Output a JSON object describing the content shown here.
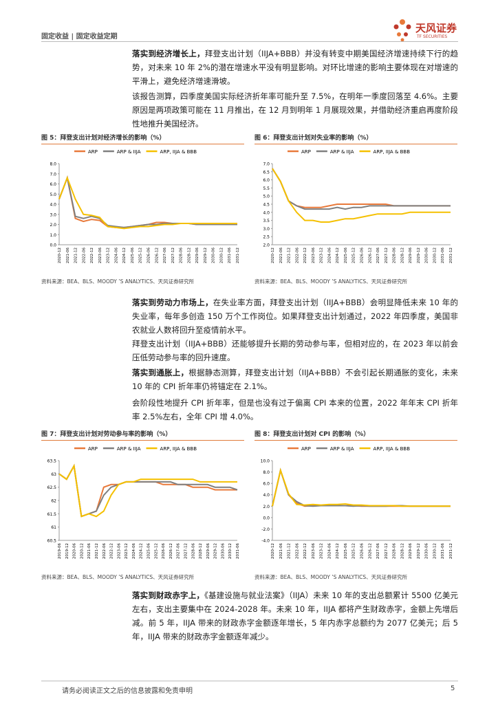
{
  "header": {
    "section": "固定收益 | 固定收益定期",
    "brand": "天风证券",
    "brand_en": "TF SECURITIES"
  },
  "paragraphs": [
    {
      "lead": "落实到经济增长上，",
      "text": "拜登支出计划（IIJA+BBB）并没有转变中期美国经济增速持续下行的趋势，对未来 10 年 2%的潜在增速水平没有明显影响。对环比增速的影响主要体现在对增速的平滑上，避免经济增速滑坡。"
    },
    {
      "text": "该报告测算，四季度美国实际经济折年率可能升至 7.5%，在明年一季度回落至 4.6%。主要原因是两项政策可能在 11 月推出，在 12 月到明年 1 月展现效果，并借助经济重启再度阶段性地推升美国经济。"
    },
    {
      "lead": "落实到劳动力市场上，",
      "text": "在失业率方面，拜登支出计划（IIJA+BBB）会明显降低未来 10 年的失业率，每年多创造 150 万个工作岗位。如果拜登支出计划通过，2022 年四季度，美国非农就业人数将回升至疫情前水平。"
    },
    {
      "text": "拜登支出计划（IIJA+BBB）还能够提升长期的劳动参与率，但相对应的，在 2023 年以前会压低劳动参与率的回升速度。"
    },
    {
      "lead": "落实到通胀上，",
      "text": "根据静态测算，拜登支出计划（IIJA+BBB）不会引起长期通胀的变化，未来 10 年的 CPI 折年率仍将锚定在 2.1%。"
    },
    {
      "text": "会阶段性地提升 CPI 折年率，但是也没有过于偏离 CPI 本来的位置，2022 年年末 CPI 折年率 2.5%左右，全年 CPI 增 4.0%。"
    },
    {
      "lead": "落实到财政赤字上，",
      "text": "《基建设施与就业法案》（IIJA）未来 10 年的支出总额累计 5500 亿美元左右，支出主要集中在 2024-2028 年。未来 10 年，IIJA 都将产生财政赤字，金额上先增后减。前 5 年，IIJA 带来的财政赤字金额逐年增长，5 年内赤字总额约为 2077 亿美元；后 5 年，IIJA 带来的财政赤字金额逐年减少。"
    }
  ],
  "footer": {
    "disclaimer": "请务必阅读正文之后的信息披露和免责申明",
    "page": "5"
  },
  "chart_data": [
    {
      "type": "line",
      "title": "图 5：拜登支出计划对经济增长的影响（%）",
      "source": "资料来源：BEA、BLS、MOODY ’S ANALYTICS、天风证券研究所",
      "categories": [
        "2020-12",
        "2021-06",
        "2021-12",
        "2022-06",
        "2022-12",
        "2023-06",
        "2023-12",
        "2024-06",
        "2024-12",
        "2025-06",
        "2025-12",
        "2026-06",
        "2026-12",
        "2027-06",
        "2027-12",
        "2028-06",
        "2028-12",
        "2029-06",
        "2029-12",
        "2030-06",
        "2030-12",
        "2031-06",
        "2031-12"
      ],
      "series": [
        {
          "name": "ARP",
          "color": "#e8793a",
          "values": [
            4.5,
            6.6,
            2.6,
            2.3,
            2.5,
            2.4,
            1.8,
            1.7,
            1.7,
            1.8,
            1.9,
            2.0,
            2.2,
            2.2,
            2.1,
            2.1,
            2.1,
            2.0,
            2.0,
            2.0,
            2.0,
            2.0,
            2.0
          ]
        },
        {
          "name": "ARP & IIJA",
          "color": "#7f7f7f",
          "values": [
            4.5,
            6.6,
            2.8,
            2.6,
            2.8,
            2.6,
            1.9,
            1.8,
            1.7,
            1.8,
            1.9,
            2.0,
            2.0,
            2.1,
            2.1,
            2.1,
            2.1,
            2.0,
            2.0,
            2.0,
            2.0,
            2.0,
            2.0
          ]
        },
        {
          "name": "ARP, IIJA & BBB",
          "color": "#f5c000",
          "values": [
            4.5,
            6.6,
            4.5,
            3.0,
            2.9,
            2.7,
            1.8,
            1.7,
            1.6,
            1.7,
            1.8,
            1.8,
            1.9,
            2.0,
            2.0,
            2.1,
            2.1,
            2.1,
            2.1,
            2.1,
            2.1,
            2.1,
            2.1
          ]
        }
      ],
      "ylim": [
        0,
        8
      ],
      "yticks": [
        {
          "value": 0,
          "label": "0.0"
        },
        {
          "value": 1,
          "label": "1.0"
        },
        {
          "value": 2,
          "label": "2.0"
        },
        {
          "value": 3,
          "label": "3.0"
        },
        {
          "value": 4,
          "label": "4.0"
        },
        {
          "value": 5,
          "label": "5.0"
        },
        {
          "value": 6,
          "label": "6.0"
        },
        {
          "value": 7,
          "label": "7.0"
        },
        {
          "value": 8,
          "label": "8.0"
        }
      ]
    },
    {
      "type": "line",
      "title": "图 6：拜登支出计划对失业率的影响（%）",
      "source": "资料来源：BEA、BLS、MOODY ’S ANALYTICS、天风证券研究所",
      "categories": [
        "2020-12",
        "2021-06",
        "2021-12",
        "2022-06",
        "2022-12",
        "2023-06",
        "2023-12",
        "2024-06",
        "2024-12",
        "2025-06",
        "2025-12",
        "2026-06",
        "2026-12",
        "2027-06",
        "2027-12",
        "2028-06",
        "2028-12",
        "2029-06",
        "2029-12",
        "2030-06",
        "2030-12",
        "2031-06",
        "2031-12"
      ],
      "series": [
        {
          "name": "ARP",
          "color": "#e8793a",
          "values": [
            6.7,
            5.9,
            4.7,
            4.4,
            4.3,
            4.3,
            4.3,
            4.4,
            4.5,
            4.5,
            4.5,
            4.5,
            4.5,
            4.5,
            4.5,
            4.4,
            4.4,
            4.4,
            4.4,
            4.4,
            4.4,
            4.4,
            4.4
          ]
        },
        {
          "name": "ARP & IIJA",
          "color": "#7f7f7f",
          "values": [
            6.7,
            5.9,
            4.7,
            4.4,
            4.2,
            4.2,
            4.2,
            4.2,
            4.3,
            4.2,
            4.3,
            4.3,
            4.4,
            4.4,
            4.4,
            4.4,
            4.4,
            4.4,
            4.4,
            4.4,
            4.4,
            4.4,
            4.4
          ]
        },
        {
          "name": "ARP, IIJA & BBB",
          "color": "#f5c000",
          "values": [
            6.7,
            5.9,
            4.7,
            4.0,
            3.5,
            3.5,
            3.4,
            3.4,
            3.5,
            3.6,
            3.6,
            3.7,
            3.8,
            3.9,
            3.9,
            3.9,
            3.9,
            4.0,
            4.0,
            4.0,
            4.0,
            4.0,
            4.0
          ]
        }
      ],
      "ylim": [
        2,
        7
      ],
      "yticks": [
        {
          "value": 2,
          "label": "2.0"
        },
        {
          "value": 2.5,
          "label": "2.5"
        },
        {
          "value": 3,
          "label": "3.0"
        },
        {
          "value": 3.5,
          "label": "3.5"
        },
        {
          "value": 4,
          "label": "4.0"
        },
        {
          "value": 4.5,
          "label": "4.5"
        },
        {
          "value": 5,
          "label": "5.0"
        },
        {
          "value": 5.5,
          "label": "5.5"
        },
        {
          "value": 6,
          "label": "6.0"
        },
        {
          "value": 6.5,
          "label": "6.5"
        },
        {
          "value": 7,
          "label": "7.0"
        }
      ]
    },
    {
      "type": "line",
      "title": "图 7：拜登支出计划对劳动参与率的影响（%）",
      "source": "资料来源：BEA、BLS、MOODY ’S ANALYTICS、天风证券研究所",
      "categories": [
        "2019-06",
        "2019-12",
        "2020-06",
        "2020-12",
        "2021-06",
        "2021-12",
        "2022-06",
        "2022-12",
        "2023-06",
        "2023-12",
        "2024-06",
        "2024-12",
        "2025-06",
        "2025-12",
        "2026-06",
        "2026-12",
        "2027-06",
        "2027-12",
        "2028-06",
        "2028-12",
        "2029-06",
        "2029-12",
        "2030-06",
        "2030-12",
        "2031-06"
      ],
      "series": [
        {
          "name": "ARP",
          "color": "#e8793a",
          "values": [
            63.0,
            62.8,
            63.3,
            61.4,
            61.5,
            61.6,
            62.5,
            62.6,
            62.6,
            62.7,
            62.7,
            62.7,
            62.7,
            62.7,
            62.6,
            62.6,
            62.6,
            62.6,
            62.5,
            62.5,
            62.5,
            62.4,
            62.4,
            62.4,
            62.4
          ]
        },
        {
          "name": "ARP & IIJA",
          "color": "#7f7f7f",
          "values": [
            63.0,
            62.8,
            63.3,
            61.4,
            61.5,
            61.6,
            62.2,
            62.5,
            62.6,
            62.7,
            62.7,
            62.7,
            62.7,
            62.7,
            62.7,
            62.7,
            62.6,
            62.6,
            62.6,
            62.6,
            62.6,
            62.5,
            62.5,
            62.5,
            62.4
          ]
        },
        {
          "name": "ARP, IIJA & BBB",
          "color": "#f5c000",
          "values": [
            63.0,
            62.8,
            63.3,
            61.4,
            61.5,
            61.4,
            61.6,
            62.2,
            62.6,
            62.7,
            62.7,
            62.8,
            62.8,
            62.8,
            62.8,
            62.8,
            62.8,
            62.8,
            62.8,
            62.7,
            62.7,
            62.7,
            62.7,
            62.7,
            62.7
          ]
        }
      ],
      "ylim": [
        60.5,
        63.5
      ],
      "yticks": [
        60.5,
        61,
        61.5,
        62,
        62.5,
        63,
        63.5
      ]
    },
    {
      "type": "line",
      "title": "图 8：拜登支出计划对 CPI 的影响（%）",
      "source": "资料来源：BEA、BLS、MOODY ’S ANALYTICS、天风证券研究所",
      "categories": [
        "2020-12",
        "2021-06",
        "2021-12",
        "2022-06",
        "2022-12",
        "2023-06",
        "2023-12",
        "2024-06",
        "2024-12",
        "2025-06",
        "2025-12",
        "2026-06",
        "2026-12",
        "2027-06",
        "2027-12",
        "2028-06",
        "2028-12",
        "2029-06",
        "2029-12",
        "2030-06",
        "2030-12",
        "2031-06",
        "2031-12"
      ],
      "series": [
        {
          "name": "ARP",
          "color": "#e8793a",
          "values": [
            2.0,
            8.3,
            4.0,
            2.5,
            2.0,
            2.1,
            2.1,
            2.1,
            2.1,
            2.1,
            2.1,
            2.0,
            2.0,
            2.0,
            2.0,
            2.0,
            2.0,
            2.0,
            2.0,
            2.0,
            2.0,
            2.0,
            2.0
          ]
        },
        {
          "name": "ARP & IIJA",
          "color": "#7f7f7f",
          "values": [
            2.0,
            8.3,
            4.0,
            2.8,
            2.1,
            2.0,
            2.1,
            2.1,
            2.1,
            2.1,
            2.0,
            2.1,
            2.0,
            2.0,
            2.0,
            2.1,
            2.1,
            2.0,
            2.0,
            2.0,
            2.0,
            2.0,
            2.0
          ]
        },
        {
          "name": "ARP, IIJA & BBB",
          "color": "#f5c000",
          "values": [
            2.0,
            8.3,
            4.2,
            2.3,
            2.2,
            2.3,
            2.2,
            2.3,
            2.3,
            2.4,
            2.2,
            2.2,
            2.1,
            2.1,
            2.1,
            2.1,
            2.0,
            2.0,
            2.0,
            2.0,
            2.0,
            2.0,
            2.0
          ]
        }
      ],
      "ylim": [
        -4,
        10
      ],
      "yticks": [
        {
          "value": -4,
          "label": "-4.0"
        },
        {
          "value": -2,
          "label": "-2.0"
        },
        {
          "value": 0,
          "label": "0.0"
        },
        {
          "value": 2,
          "label": "2.0"
        },
        {
          "value": 4,
          "label": "4.0"
        },
        {
          "value": 6,
          "label": "6.0"
        },
        {
          "value": 8,
          "label": "8.0"
        },
        {
          "value": 10,
          "label": "10.0"
        }
      ]
    }
  ]
}
